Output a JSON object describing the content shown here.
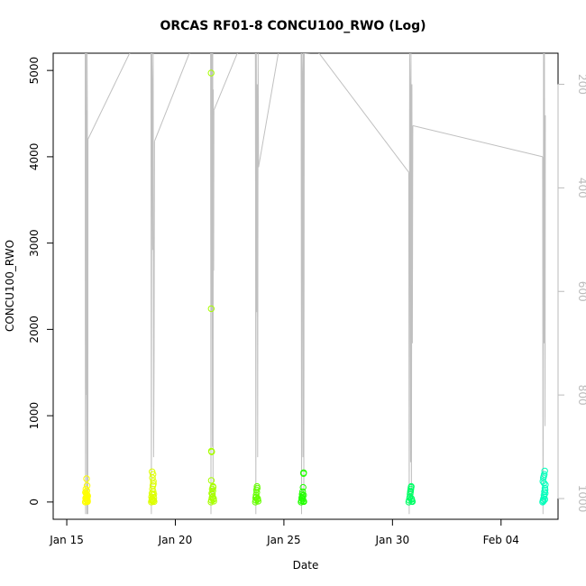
{
  "chart_data": {
    "type": "scatter",
    "title": "ORCAS RF01-8 CONCU100_RWO (Log)",
    "xlabel": "Date",
    "ylabel": "CONCU100_RWO",
    "xlim": [
      "2016-01-14T09:00",
      "2016-02-06T15:00"
    ],
    "ylim": [
      -200,
      5200
    ],
    "x_ticks": [
      {
        "value": "2016-01-15",
        "label": "Jan 15"
      },
      {
        "value": "2016-01-20",
        "label": "Jan 20"
      },
      {
        "value": "2016-01-25",
        "label": "Jan 25"
      },
      {
        "value": "2016-01-30",
        "label": "Jan 30"
      },
      {
        "value": "2016-02-04",
        "label": "Feb 04"
      }
    ],
    "y_ticks": [
      0,
      1000,
      2000,
      3000,
      4000,
      5000
    ],
    "y2_axis": {
      "description": "secondary axis shown in gray, reversed",
      "ticks": [
        200,
        400,
        600,
        800,
        1000
      ],
      "ylim": [
        1040,
        140
      ],
      "color": "#bbbbbb"
    },
    "line_series": {
      "color": "#c0c0c0",
      "segments": [
        {
          "flight": "RF01",
          "x": [
            "2016-01-15T20:10",
            "2016-01-15T20:20",
            "2016-01-15T20:30",
            "2016-01-15T20:45",
            "2016-01-15T21:00",
            "2016-01-15T21:15",
            "2016-01-15T21:30",
            "2016-01-15T21:45",
            "2016-01-15T22:00",
            "2016-01-15T22:15",
            "2016-01-15T22:30",
            "2016-01-15T22:45",
            "2016-01-15T23:00",
            "2016-01-15T23:15",
            "2016-01-15T23:30"
          ],
          "y": [
            140,
            140,
            640,
            1030,
            140,
            140,
            800,
            250,
            600,
            1030,
            140,
            260,
            850,
            1030,
            306
          ]
        },
        {
          "flight": "RF01-RF02",
          "x": [
            "2016-01-15T23:30",
            "2016-01-17T22:00"
          ],
          "y": [
            306,
            138
          ]
        },
        {
          "flight": "RF02",
          "x": [
            "2016-01-18T21:00",
            "2016-01-18T21:30",
            "2016-01-18T22:00",
            "2016-01-18T22:30",
            "2016-01-18T23:00",
            "2016-01-18T23:30",
            "2016-01-19T00:00",
            "2016-01-19T00:30",
            "2016-01-19T01:00"
          ],
          "y": [
            140,
            1030,
            140,
            200,
            520,
            140,
            920,
            730,
            310
          ]
        },
        {
          "flight": "RF02-RF03",
          "x": [
            "2016-01-19T01:00",
            "2016-01-20T16:00"
          ],
          "y": [
            310,
            138
          ]
        },
        {
          "flight": "RF03",
          "x": [
            "2016-01-21T15:00",
            "2016-01-21T15:20",
            "2016-01-21T15:40",
            "2016-01-21T16:00",
            "2016-01-21T16:20",
            "2016-01-21T16:40",
            "2016-01-21T17:00",
            "2016-01-21T17:20",
            "2016-01-21T17:40",
            "2016-01-21T18:00",
            "2016-01-21T18:20",
            "2016-01-21T18:40"
          ],
          "y": [
            140,
            1030,
            140,
            200,
            640,
            140,
            900,
            140,
            1000,
            210,
            560,
            250
          ]
        },
        {
          "flight": "RF03-RF04",
          "x": [
            "2016-01-21T18:40",
            "2016-01-22T21:00"
          ],
          "y": [
            250,
            138
          ]
        },
        {
          "flight": "RF04",
          "x": [
            "2016-01-23T16:30",
            "2016-01-23T17:00",
            "2016-01-23T17:30",
            "2016-01-23T18:00",
            "2016-01-23T18:30",
            "2016-01-23T19:00",
            "2016-01-23T19:30",
            "2016-01-23T20:00"
          ],
          "y": [
            140,
            1030,
            140,
            640,
            200,
            920,
            140,
            360
          ]
        },
        {
          "flight": "RF04-RF05",
          "x": [
            "2016-01-23T20:00",
            "2016-01-24T18:00"
          ],
          "y": [
            360,
            138
          ]
        },
        {
          "flight": "RF05",
          "x": [
            "2016-01-25T19:00",
            "2016-01-25T19:30",
            "2016-01-25T20:00",
            "2016-01-25T20:30",
            "2016-01-25T21:00",
            "2016-01-25T21:30",
            "2016-01-25T22:00",
            "2016-01-25T22:30"
          ],
          "y": [
            140,
            1030,
            140,
            180,
            920,
            140,
            1000,
            140
          ]
        },
        {
          "flight": "RF05-RF06",
          "x": [
            "2016-01-25T22:30",
            "2016-01-26T14:00"
          ],
          "y": [
            140,
            138
          ]
        },
        {
          "flight": "RF05-RF06b",
          "x": [
            "2016-01-26T14:00",
            "2016-01-30T18:00"
          ],
          "y": [
            138,
            370
          ]
        },
        {
          "flight": "RF06",
          "x": [
            "2016-01-30T18:00",
            "2016-01-30T18:30",
            "2016-01-30T19:00",
            "2016-01-30T19:30",
            "2016-01-30T20:00",
            "2016-01-30T20:30",
            "2016-01-30T21:00",
            "2016-01-30T21:30",
            "2016-01-30T22:00",
            "2016-01-30T22:30"
          ],
          "y": [
            370,
            1030,
            140,
            210,
            930,
            140,
            1000,
            200,
            700,
            280
          ]
        },
        {
          "flight": "RF06-RF07",
          "x": [
            "2016-01-30T22:30",
            "2016-02-05T22:00"
          ],
          "y": [
            280,
            340
          ]
        },
        {
          "flight": "RF07",
          "x": [
            "2016-02-05T22:00",
            "2016-02-05T22:20",
            "2016-02-05T22:40",
            "2016-02-05T23:00",
            "2016-02-05T23:20",
            "2016-02-05T23:40",
            "2016-02-06T00:00",
            "2016-02-06T00:20",
            "2016-02-06T00:40",
            "2016-02-06T01:00"
          ],
          "y": [
            340,
            1030,
            850,
            140,
            200,
            700,
            140,
            560,
            860,
            260
          ]
        }
      ]
    },
    "series": [
      {
        "color": "#ffff00",
        "x": [
          "2016-01-15T20:30",
          "2016-01-15T21:00",
          "2016-01-15T21:20",
          "2016-01-15T21:40",
          "2016-01-15T22:00",
          "2016-01-15T22:20",
          "2016-01-15T22:40",
          "2016-01-15T23:00",
          "2016-01-15T20:40",
          "2016-01-15T21:10",
          "2016-01-15T21:50",
          "2016-01-15T22:30",
          "2016-01-15T23:10",
          "2016-01-15T20:50",
          "2016-01-15T21:30",
          "2016-01-15T22:10",
          "2016-01-15T22:50",
          "2016-01-15T21:45",
          "2016-01-15T22:25"
        ],
        "y": [
          0,
          10,
          30,
          60,
          90,
          20,
          40,
          5,
          110,
          150,
          270,
          190,
          70,
          45,
          100,
          130,
          15,
          50,
          80
        ]
      },
      {
        "color": "#ddff00",
        "x": [
          "2016-01-18T21:30",
          "2016-01-18T22:00",
          "2016-01-18T22:30",
          "2016-01-18T23:00",
          "2016-01-18T23:30",
          "2016-01-19T00:00",
          "2016-01-19T00:30",
          "2016-01-18T21:45",
          "2016-01-18T22:15",
          "2016-01-18T22:45",
          "2016-01-18T23:15",
          "2016-01-18T23:45",
          "2016-01-19T00:15",
          "2016-01-18T22:20",
          "2016-01-18T23:20",
          "2016-01-18T22:40",
          "2016-01-18T23:40",
          "2016-01-19T00:10",
          "2016-01-18T22:05",
          "2016-01-18T23:05"
        ],
        "y": [
          0,
          15,
          40,
          80,
          120,
          20,
          5,
          60,
          100,
          150,
          190,
          240,
          90,
          350,
          320,
          280,
          210,
          50,
          30,
          10
        ]
      },
      {
        "color": "#a8ff00",
        "x": [
          "2016-01-21T15:30",
          "2016-01-21T16:00",
          "2016-01-21T16:30",
          "2016-01-21T17:00",
          "2016-01-21T17:30",
          "2016-01-21T18:00",
          "2016-01-21T18:30",
          "2016-01-21T16:15",
          "2016-01-21T16:45",
          "2016-01-21T17:15",
          "2016-01-21T17:45",
          "2016-01-21T15:45",
          "2016-01-21T15:35",
          "2016-01-21T15:40",
          "2016-01-21T15:50",
          "2016-01-21T16:10",
          "2016-01-21T17:40",
          "2016-01-21T18:15"
        ],
        "y": [
          0,
          20,
          50,
          90,
          130,
          30,
          10,
          100,
          150,
          60,
          170,
          250,
          4970,
          2240,
          590,
          580,
          180,
          40
        ]
      },
      {
        "color": "#66ff00",
        "x": [
          "2016-01-23T16:30",
          "2016-01-23T17:00",
          "2016-01-23T17:30",
          "2016-01-23T18:00",
          "2016-01-23T18:30",
          "2016-01-23T19:00",
          "2016-01-23T19:30",
          "2016-01-23T17:15",
          "2016-01-23T17:45",
          "2016-01-23T18:15",
          "2016-01-23T18:45",
          "2016-01-23T16:45"
        ],
        "y": [
          0,
          20,
          60,
          110,
          160,
          40,
          10,
          80,
          140,
          180,
          30,
          50
        ]
      },
      {
        "color": "#22ff00",
        "x": [
          "2016-01-25T19:00",
          "2016-01-25T19:30",
          "2016-01-25T20:00",
          "2016-01-25T20:30",
          "2016-01-25T21:00",
          "2016-01-25T21:30",
          "2016-01-25T22:00",
          "2016-01-25T19:45",
          "2016-01-25T20:15",
          "2016-01-25T20:45",
          "2016-01-25T21:15",
          "2016-01-25T21:45",
          "2016-01-25T21:40",
          "2016-01-25T21:50"
        ],
        "y": [
          0,
          15,
          40,
          70,
          30,
          10,
          5,
          50,
          90,
          120,
          170,
          80,
          330,
          340
        ]
      },
      {
        "color": "#00ff66",
        "x": [
          "2016-01-30T18:00",
          "2016-01-30T18:30",
          "2016-01-30T19:00",
          "2016-01-30T19:30",
          "2016-01-30T20:00",
          "2016-01-30T20:30",
          "2016-01-30T21:00",
          "2016-01-30T21:30",
          "2016-01-30T22:00",
          "2016-01-30T19:15",
          "2016-01-30T19:45",
          "2016-01-30T20:15",
          "2016-01-30T20:45",
          "2016-01-30T21:15"
        ],
        "y": [
          0,
          20,
          50,
          90,
          130,
          170,
          40,
          10,
          5,
          60,
          110,
          150,
          180,
          30
        ]
      },
      {
        "color": "#00ffbb",
        "x": [
          "2016-02-05T22:00",
          "2016-02-05T22:30",
          "2016-02-05T23:00",
          "2016-02-05T23:30",
          "2016-02-06T00:00",
          "2016-02-06T00:30",
          "2016-02-06T01:00",
          "2016-02-05T22:15",
          "2016-02-05T22:45",
          "2016-02-05T23:15",
          "2016-02-05T23:45",
          "2016-02-06T00:15",
          "2016-02-06T00:45",
          "2016-02-05T23:40",
          "2016-02-06T00:20",
          "2016-02-05T22:50",
          "2016-02-06T00:40",
          "2016-02-05T23:25"
        ],
        "y": [
          0,
          20,
          40,
          80,
          120,
          160,
          200,
          240,
          280,
          300,
          320,
          360,
          100,
          60,
          30,
          10,
          140,
          220
        ]
      }
    ]
  }
}
